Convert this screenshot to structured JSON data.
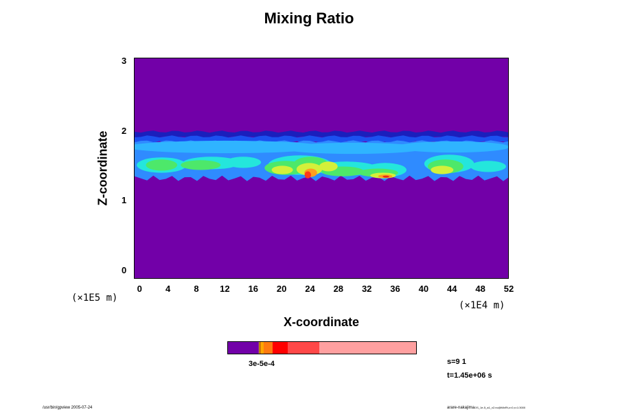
{
  "chart_data": {
    "type": "heatmap",
    "title": "Mixing Ratio",
    "xlabel": "X-coordinate",
    "ylabel": "Z-coordinate",
    "x_scale_label": "(×1E4 m)",
    "y_scale_label": "(×1E5 m)",
    "x_ticks": [
      "0",
      "4",
      "8",
      "12",
      "16",
      "20",
      "24",
      "28",
      "32",
      "36",
      "40",
      "44",
      "48",
      "52"
    ],
    "y_ticks": [
      "0",
      "1",
      "2",
      "3"
    ],
    "xlim": [
      -0.8,
      52
    ],
    "ylim": [
      -0.12,
      3.05
    ],
    "background_color": "#7200a8",
    "layer": {
      "bottom_z": 1.33,
      "top_z": 2.0,
      "bands": [
        {
          "z_min": 1.92,
          "z_max": 2.0,
          "color": "#1a1fbd"
        },
        {
          "z_min": 1.85,
          "z_max": 1.93,
          "color": "#1c50f0"
        },
        {
          "z_min": 1.33,
          "z_max": 1.86,
          "color": "#2f8bff"
        }
      ],
      "blobs": [
        {
          "x": 12.0,
          "z": 1.78,
          "rx": 14.0,
          "rz": 0.09,
          "color": "#2fb4ff"
        },
        {
          "x": 30.0,
          "z": 1.76,
          "rx": 10.0,
          "rz": 0.08,
          "color": "#2fb4ff"
        },
        {
          "x": 44.0,
          "z": 1.78,
          "rx": 8.0,
          "rz": 0.08,
          "color": "#2fb4ff"
        },
        {
          "x": 3.0,
          "z": 1.52,
          "rx": 3.5,
          "rz": 0.11,
          "color": "#24e6dc"
        },
        {
          "x": 10.0,
          "z": 1.55,
          "rx": 4.0,
          "rz": 0.09,
          "color": "#24e6dc"
        },
        {
          "x": 14.5,
          "z": 1.56,
          "rx": 2.5,
          "rz": 0.08,
          "color": "#24e6dc"
        },
        {
          "x": 22.5,
          "z": 1.52,
          "rx": 4.5,
          "rz": 0.14,
          "color": "#24e6dc"
        },
        {
          "x": 29.0,
          "z": 1.47,
          "rx": 4.5,
          "rz": 0.1,
          "color": "#24e6dc"
        },
        {
          "x": 34.5,
          "z": 1.45,
          "rx": 3.0,
          "rz": 0.1,
          "color": "#24e6dc"
        },
        {
          "x": 43.5,
          "z": 1.54,
          "rx": 3.5,
          "rz": 0.13,
          "color": "#24e6dc"
        },
        {
          "x": 49.0,
          "z": 1.5,
          "rx": 2.5,
          "rz": 0.08,
          "color": "#24e6dc"
        },
        {
          "x": 3.0,
          "z": 1.52,
          "rx": 2.2,
          "rz": 0.08,
          "color": "#4de86a"
        },
        {
          "x": 8.5,
          "z": 1.52,
          "rx": 2.8,
          "rz": 0.07,
          "color": "#4de86a"
        },
        {
          "x": 20.5,
          "z": 1.48,
          "rx": 3.0,
          "rz": 0.1,
          "color": "#4de86a"
        },
        {
          "x": 24.0,
          "z": 1.52,
          "rx": 2.5,
          "rz": 0.12,
          "color": "#4de86a"
        },
        {
          "x": 28.5,
          "z": 1.43,
          "rx": 3.0,
          "rz": 0.07,
          "color": "#4de86a"
        },
        {
          "x": 33.5,
          "z": 1.41,
          "rx": 2.8,
          "rz": 0.06,
          "color": "#4de86a"
        },
        {
          "x": 43.0,
          "z": 1.5,
          "rx": 2.5,
          "rz": 0.1,
          "color": "#4de86a"
        },
        {
          "x": 20.0,
          "z": 1.45,
          "rx": 1.5,
          "rz": 0.06,
          "color": "#d4f03a"
        },
        {
          "x": 23.8,
          "z": 1.46,
          "rx": 1.8,
          "rz": 0.09,
          "color": "#d4f03a"
        },
        {
          "x": 26.5,
          "z": 1.5,
          "rx": 1.3,
          "rz": 0.07,
          "color": "#d4f03a"
        },
        {
          "x": 34.2,
          "z": 1.37,
          "rx": 1.8,
          "rz": 0.04,
          "color": "#d4f03a"
        },
        {
          "x": 42.5,
          "z": 1.45,
          "rx": 1.6,
          "rz": 0.06,
          "color": "#d4f03a"
        },
        {
          "x": 24.0,
          "z": 1.41,
          "rx": 0.9,
          "rz": 0.06,
          "color": "#ff9e1f"
        },
        {
          "x": 34.5,
          "z": 1.36,
          "rx": 1.0,
          "rz": 0.025,
          "color": "#ff9e1f"
        },
        {
          "x": 23.6,
          "z": 1.38,
          "rx": 0.45,
          "rz": 0.05,
          "color": "#ff3a1a"
        },
        {
          "x": 34.6,
          "z": 1.355,
          "rx": 0.45,
          "rz": 0.015,
          "color": "#e8281a"
        }
      ]
    },
    "colorbar": {
      "segments": [
        {
          "color": "#7200a8",
          "width": 16.5
        },
        {
          "color": "#ffe000",
          "width": 0.4
        },
        {
          "color": "#6a1a1a",
          "width": 0.4
        },
        {
          "color": "#ffa500",
          "width": 1.8
        },
        {
          "color": "#ff7a10",
          "width": 4.7
        },
        {
          "color": "#ff0000",
          "width": 8.0
        },
        {
          "color": "#ff4848",
          "width": 16.6
        },
        {
          "color": "#ffa0a0",
          "width": 51.6
        }
      ],
      "label": "3e-5e-4"
    }
  },
  "info": {
    "s_label": "s=9 1",
    "t_label": "t=1.45e+06 s"
  },
  "footer": {
    "left": "/usr/bin/gpview 2005-07-24",
    "right": "arare-nakajima",
    "right_small": "OS_1e-5_a1_v2.nc@MixRt,z=0,x=1:3000"
  }
}
